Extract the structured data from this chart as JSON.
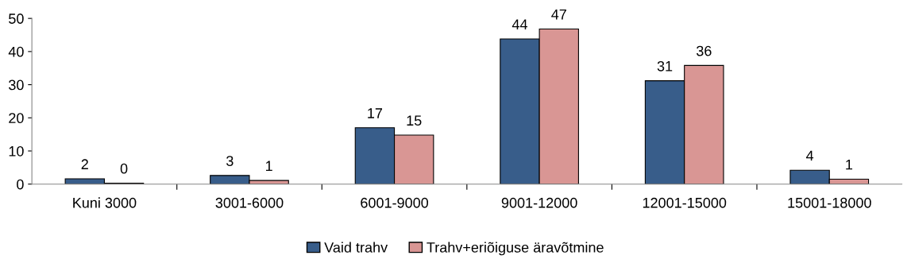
{
  "chart_data": {
    "type": "bar",
    "categories": [
      "Kuni 3000",
      "3001-6000",
      "6001-9000",
      "9001-12000",
      "12001-15000",
      "15001-18000"
    ],
    "series": [
      {
        "name": "Vaid trahv",
        "color": "#385d8a",
        "values": [
          1.6,
          2.6,
          17,
          43.8,
          31.2,
          4.2
        ],
        "value_labels": [
          "2",
          "3",
          "17",
          "44",
          "31",
          "4"
        ]
      },
      {
        "name": "Trahv+eriõiguse äravõtmine",
        "color": "#d99694",
        "values": [
          0.3,
          1.1,
          14.8,
          46.8,
          35.8,
          1.5
        ],
        "value_labels": [
          "0",
          "1",
          "15",
          "47",
          "36",
          "1"
        ]
      }
    ],
    "ylim": [
      0,
      50
    ],
    "yticks": [
      0,
      10,
      20,
      30,
      40,
      50
    ],
    "grid": false,
    "legend": "bottom"
  }
}
